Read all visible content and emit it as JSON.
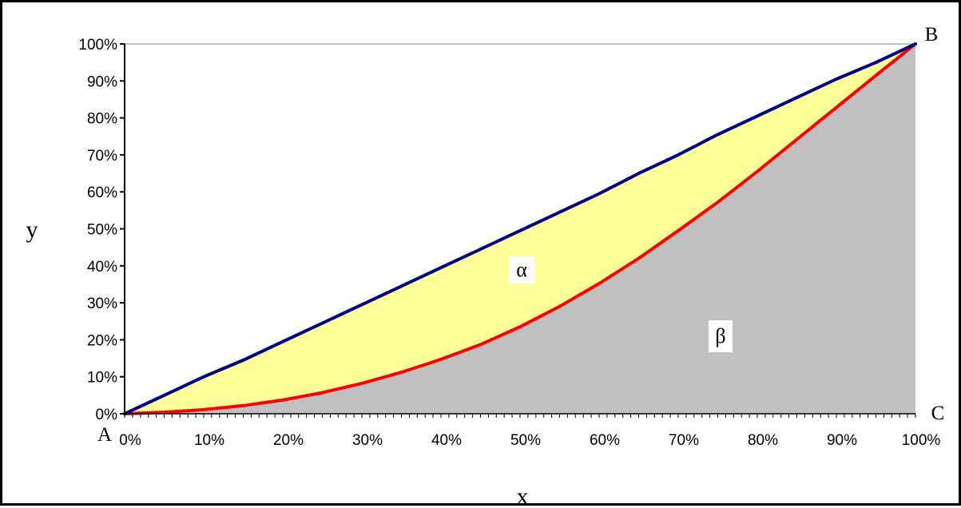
{
  "chart_data": {
    "type": "area",
    "x": [
      0,
      0.05,
      0.1,
      0.15,
      0.2,
      0.25,
      0.3,
      0.35,
      0.4,
      0.45,
      0.5,
      0.55,
      0.6,
      0.65,
      0.7,
      0.75,
      0.8,
      0.85,
      0.9,
      0.95,
      1.0
    ],
    "series": [
      {
        "values": [
          0,
          0.05,
          0.1,
          0.145,
          0.195,
          0.245,
          0.295,
          0.345,
          0.395,
          0.445,
          0.495,
          0.545,
          0.595,
          0.65,
          0.7,
          0.755,
          0.805,
          0.855,
          0.905,
          0.95,
          1.0
        ],
        "color": "#000080"
      },
      {
        "values": [
          0,
          0.004,
          0.011,
          0.022,
          0.037,
          0.057,
          0.082,
          0.112,
          0.147,
          0.187,
          0.235,
          0.29,
          0.352,
          0.42,
          0.495,
          0.572,
          0.655,
          0.742,
          0.828,
          0.915,
          1.0
        ],
        "color": "#ff0000"
      }
    ],
    "xticks": [
      "0%",
      "10%",
      "20%",
      "30%",
      "40%",
      "50%",
      "60%",
      "70%",
      "80%",
      "90%",
      "100%"
    ],
    "yticks": [
      "0%",
      "10%",
      "20%",
      "30%",
      "40%",
      "50%",
      "60%",
      "70%",
      "80%",
      "90%",
      "100%"
    ],
    "xlim": [
      0,
      1
    ],
    "ylim": [
      0,
      1
    ],
    "xlabel": "x",
    "ylabel": "y",
    "grid": false,
    "annotations": {
      "corner_a": "A",
      "corner_b": "B",
      "corner_c": "C",
      "alpha": "α",
      "beta": "β"
    },
    "colors": {
      "between_fill": "#ffff99",
      "below_fill": "#c0c0c0",
      "plot_border": "#808080"
    }
  }
}
